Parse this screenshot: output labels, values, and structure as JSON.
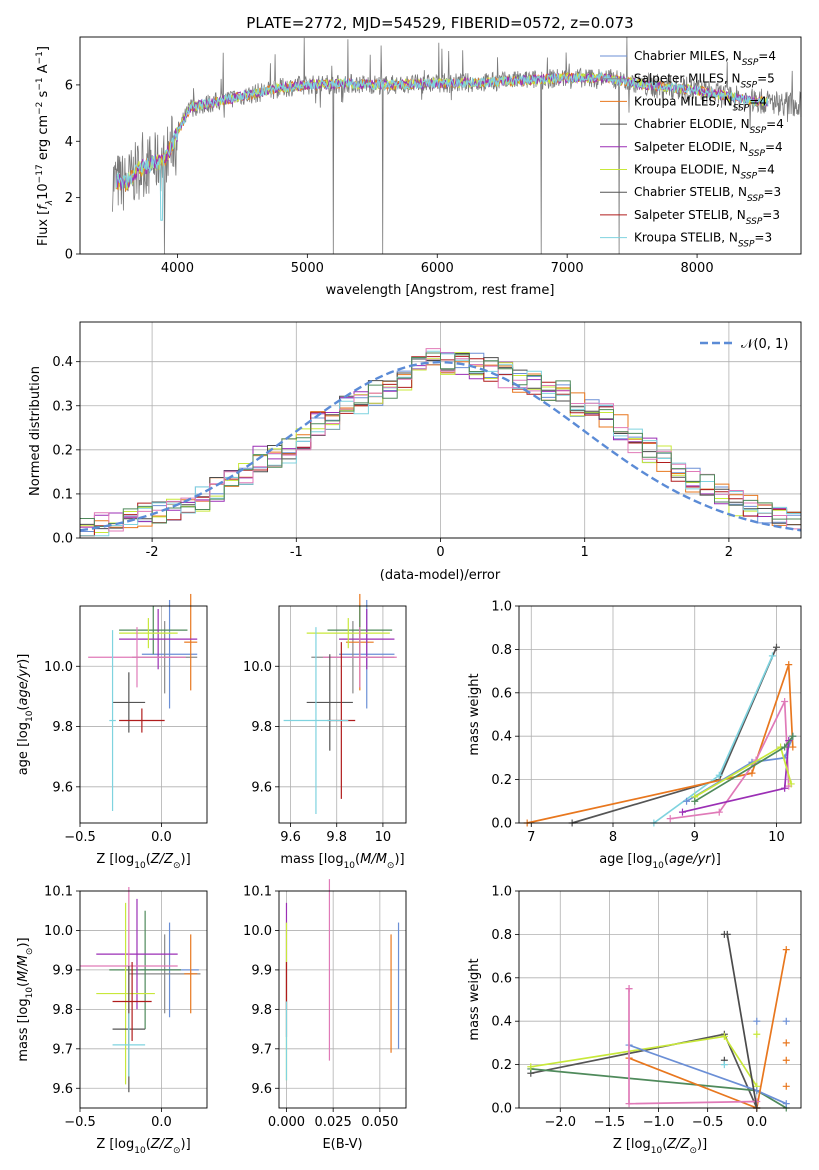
{
  "figure": {
    "title": "PLATE=2772, MJD=54529, FIBERID=0572, z=0.073"
  },
  "legend_entries": [
    {
      "name": "Chabrier MILES, N",
      "sub": "SSP",
      "tail": "=4",
      "color": "#6b8fd6"
    },
    {
      "name": "Salpeter MILES, N",
      "sub": "SSP",
      "tail": "=5",
      "color": "#8a8a8a"
    },
    {
      "name": "Kroupa MILES, N",
      "sub": "SSP",
      "tail": "=4",
      "color": "#e8771e"
    },
    {
      "name": "Chabrier ELODIE, N",
      "sub": "SSP",
      "tail": "=4",
      "color": "#4b4b4b"
    },
    {
      "name": "Salpeter ELODIE, N",
      "sub": "SSP",
      "tail": "=4",
      "color": "#9b2fb5"
    },
    {
      "name": "Kroupa ELODIE, N",
      "sub": "SSP",
      "tail": "=4",
      "color": "#c8e83a"
    },
    {
      "name": "Chabrier STELIB, N",
      "sub": "SSP",
      "tail": "=3",
      "color": "#555555"
    },
    {
      "name": "Salpeter STELIB, N",
      "sub": "SSP",
      "tail": "=3",
      "color": "#b01c1c"
    },
    {
      "name": "Kroupa STELIB, N",
      "sub": "SSP",
      "tail": "=3",
      "color": "#7fd3df"
    }
  ],
  "colors": {
    "spectrum_data": "#7a7a7a",
    "model": "#7fd3df",
    "gaussian": "#5b8bd6",
    "grid": "#b0b0b0",
    "chab_miles": "#6b8fd6",
    "salp_miles": "#8a8a8a",
    "krou_miles": "#e8771e",
    "chab_elodie": "#4b4b4b",
    "salp_elodie": "#9b2fb5",
    "krou_elodie": "#c8e83a",
    "chab_stelib": "#555555",
    "salp_stelib": "#b01c1c",
    "krou_stelib": "#7fd3df",
    "pink": "#e07ab8",
    "green": "#4f8a5b"
  },
  "chart_data": [
    {
      "id": "spectrum",
      "type": "line",
      "title": "PLATE=2772, MJD=54529, FIBERID=0572, z=0.073",
      "xlabel": "wavelength [Angstrom, rest frame]",
      "ylabel": "Flux [f_λ 10^-17 erg cm^-2 s^-1 A^-1]",
      "xlim": [
        3250,
        8800
      ],
      "ylim": [
        0,
        7.7
      ],
      "xticks": [
        4000,
        5000,
        6000,
        7000,
        8000
      ],
      "yticks": [
        0,
        2,
        4,
        6
      ],
      "continuum": [
        [
          3500,
          2.6
        ],
        [
          3600,
          2.5
        ],
        [
          3700,
          3.0
        ],
        [
          3800,
          3.2
        ],
        [
          3900,
          3.3
        ],
        [
          4000,
          4.3
        ],
        [
          4100,
          5.2
        ],
        [
          4300,
          5.4
        ],
        [
          4500,
          5.6
        ],
        [
          4800,
          5.9
        ],
        [
          5000,
          6.0
        ],
        [
          5300,
          6.05
        ],
        [
          5600,
          6.0
        ],
        [
          6000,
          6.05
        ],
        [
          6400,
          6.1
        ],
        [
          6800,
          6.2
        ],
        [
          7000,
          6.25
        ],
        [
          7300,
          6.25
        ],
        [
          7600,
          6.0
        ],
        [
          8000,
          5.8
        ],
        [
          8400,
          5.45
        ],
        [
          8800,
          5.3
        ]
      ],
      "model_end": 8550,
      "spikes_down": [
        3900,
        5200,
        5580,
        6800,
        7400
      ],
      "grid": false
    },
    {
      "id": "residuals",
      "type": "histogram",
      "xlabel": "(data-model)/error",
      "ylabel": "Normed distribution",
      "xlim": [
        -2.5,
        2.5
      ],
      "ylim": [
        0,
        0.49
      ],
      "xticks": [
        -2,
        -1,
        0,
        1,
        2
      ],
      "yticks": [
        0.0,
        0.1,
        0.2,
        0.3,
        0.4
      ],
      "legend": "N(0,1)",
      "bin_width": 0.1,
      "base_histogram": [
        0.02,
        0.03,
        0.03,
        0.04,
        0.05,
        0.06,
        0.06,
        0.07,
        0.09,
        0.11,
        0.13,
        0.15,
        0.18,
        0.19,
        0.2,
        0.23,
        0.26,
        0.27,
        0.3,
        0.31,
        0.33,
        0.34,
        0.36,
        0.39,
        0.41,
        0.4,
        0.4,
        0.39,
        0.38,
        0.37,
        0.36,
        0.35,
        0.34,
        0.33,
        0.3,
        0.3,
        0.28,
        0.25,
        0.22,
        0.2,
        0.18,
        0.15,
        0.13,
        0.12,
        0.1,
        0.08,
        0.07,
        0.06,
        0.05,
        0.04
      ],
      "grid": true
    },
    {
      "id": "age_vs_Z",
      "type": "errorbar",
      "xlabel": "Z [log10(Z/Zsun)]",
      "ylabel": "age [log10(age/yr)]",
      "xlim": [
        -0.5,
        0.28
      ],
      "ylim": [
        9.48,
        10.2
      ],
      "xticks": [
        -0.5,
        0.0
      ],
      "xtick_labels": [
        "−0.5",
        "0.0"
      ],
      "yticks": [
        9.6,
        9.8,
        10.0
      ],
      "points": [
        {
          "x": 0.05,
          "y": 10.04,
          "xerr": 0.17,
          "yerr": 0.18,
          "color": "chab_miles"
        },
        {
          "x": 0.02,
          "y": 10.03,
          "xerr": 0.2,
          "yerr": 0.12,
          "color": "salp_miles"
        },
        {
          "x": 0.18,
          "y": 10.08,
          "xerr": 0.04,
          "yerr": 0.16,
          "color": "krou_miles"
        },
        {
          "x": -0.05,
          "y": 10.12,
          "xerr": 0.21,
          "yerr": 0.08,
          "color": "green"
        },
        {
          "x": -0.02,
          "y": 10.09,
          "xerr": 0.24,
          "yerr": 0.1,
          "color": "salp_elodie"
        },
        {
          "x": -0.08,
          "y": 10.11,
          "xerr": 0.18,
          "yerr": 0.05,
          "color": "krou_elodie"
        },
        {
          "x": -0.15,
          "y": 10.03,
          "xerr": 0.3,
          "yerr": 0.1,
          "color": "pink"
        },
        {
          "x": -0.2,
          "y": 9.88,
          "xerr": 0.1,
          "yerr": 0.1,
          "color": "chab_stelib"
        },
        {
          "x": -0.12,
          "y": 9.82,
          "xerr": 0.14,
          "yerr": 0.04,
          "color": "salp_stelib"
        },
        {
          "x": -0.3,
          "y": 9.82,
          "xerr": 0.02,
          "yerr": 0.3,
          "color": "krou_stelib"
        }
      ],
      "grid": true
    },
    {
      "id": "age_vs_mass",
      "type": "errorbar",
      "xlabel": "mass [log10(M/Msun)]",
      "xlim": [
        9.55,
        10.1
      ],
      "ylim": [
        9.48,
        10.2
      ],
      "xticks": [
        9.6,
        9.8,
        10.0
      ],
      "yticks": [
        9.6,
        9.8,
        10.0
      ],
      "points": [
        {
          "x": 9.93,
          "y": 10.04,
          "xerr": 0.12,
          "yerr": 0.18,
          "color": "chab_miles"
        },
        {
          "x": 9.87,
          "y": 10.03,
          "xerr": 0.18,
          "yerr": 0.12,
          "color": "salp_miles"
        },
        {
          "x": 9.9,
          "y": 10.08,
          "xerr": 0.06,
          "yerr": 0.16,
          "color": "krou_miles"
        },
        {
          "x": 9.9,
          "y": 10.12,
          "xerr": 0.14,
          "yerr": 0.08,
          "color": "green"
        },
        {
          "x": 9.93,
          "y": 10.09,
          "xerr": 0.12,
          "yerr": 0.1,
          "color": "salp_elodie"
        },
        {
          "x": 9.85,
          "y": 10.11,
          "xerr": 0.18,
          "yerr": 0.05,
          "color": "krou_elodie"
        },
        {
          "x": 9.9,
          "y": 10.03,
          "xerr": 0.16,
          "yerr": 0.1,
          "color": "pink"
        },
        {
          "x": 9.77,
          "y": 9.88,
          "xerr": 0.1,
          "yerr": 0.16,
          "color": "chab_stelib"
        },
        {
          "x": 9.82,
          "y": 9.82,
          "xerr": 0.06,
          "yerr": 0.26,
          "color": "salp_stelib"
        },
        {
          "x": 9.71,
          "y": 9.82,
          "xerr": 0.14,
          "yerr": 0.31,
          "color": "krou_stelib"
        }
      ],
      "grid": true
    },
    {
      "id": "weight_vs_age",
      "type": "line",
      "xlabel": "age [log10(age/yr)]",
      "ylabel": "mass weight",
      "xlim": [
        6.85,
        10.3
      ],
      "ylim": [
        0,
        1
      ],
      "xticks": [
        7,
        8,
        9,
        10
      ],
      "yticks": [
        0.0,
        0.2,
        0.4,
        0.6,
        0.8,
        1.0
      ],
      "series": [
        {
          "color": "chab_stelib",
          "points": [
            [
              7.5,
              0.0
            ],
            [
              9.3,
              0.2
            ],
            [
              10.0,
              0.81
            ]
          ]
        },
        {
          "color": "krou_stelib",
          "points": [
            [
              8.5,
              0.0
            ],
            [
              9.3,
              0.22
            ],
            [
              9.95,
              0.77
            ]
          ]
        },
        {
          "color": "krou_miles",
          "points": [
            [
              6.95,
              0.0
            ],
            [
              9.7,
              0.23
            ],
            [
              10.15,
              0.73
            ],
            [
              10.2,
              0.35
            ]
          ]
        },
        {
          "color": "pink",
          "points": [
            [
              8.7,
              0.02
            ],
            [
              9.3,
              0.05
            ],
            [
              9.75,
              0.29
            ],
            [
              10.1,
              0.56
            ],
            [
              10.15,
              0.17
            ]
          ]
        },
        {
          "color": "chab_miles",
          "points": [
            [
              8.9,
              0.1
            ],
            [
              9.7,
              0.28
            ],
            [
              10.1,
              0.3
            ],
            [
              10.2,
              0.4
            ]
          ]
        },
        {
          "color": "salp_elodie",
          "points": [
            [
              8.85,
              0.05
            ],
            [
              10.1,
              0.16
            ],
            [
              10.15,
              0.38
            ]
          ]
        },
        {
          "color": "krou_elodie",
          "points": [
            [
              9.0,
              0.12
            ],
            [
              10.05,
              0.35
            ],
            [
              10.18,
              0.18
            ]
          ]
        },
        {
          "color": "green",
          "points": [
            [
              9.0,
              0.1
            ],
            [
              10.1,
              0.35
            ],
            [
              10.2,
              0.4
            ]
          ]
        }
      ],
      "grid": true
    },
    {
      "id": "mass_vs_Z",
      "type": "errorbar",
      "xlabel": "Z [log10(Z/Zsun)]",
      "ylabel": "mass [log10(M/Msun)]",
      "xlim": [
        -0.5,
        0.28
      ],
      "ylim": [
        9.55,
        10.1
      ],
      "xticks": [
        -0.5,
        0.0
      ],
      "xtick_labels": [
        "−0.5",
        "0.0"
      ],
      "yticks": [
        9.6,
        9.7,
        9.8,
        9.9,
        10.0,
        10.1
      ],
      "points": [
        {
          "x": 0.05,
          "y": 9.9,
          "xerr": 0.18,
          "yerr": 0.12,
          "color": "chab_miles"
        },
        {
          "x": 0.02,
          "y": 9.89,
          "xerr": 0.22,
          "yerr": 0.1,
          "color": "salp_miles"
        },
        {
          "x": 0.18,
          "y": 9.89,
          "xerr": 0.04,
          "yerr": 0.1,
          "color": "krou_miles"
        },
        {
          "x": -0.1,
          "y": 9.9,
          "xerr": 0.22,
          "yerr": 0.15,
          "color": "green"
        },
        {
          "x": -0.15,
          "y": 9.94,
          "xerr": 0.25,
          "yerr": 0.14,
          "color": "salp_elodie"
        },
        {
          "x": -0.22,
          "y": 9.84,
          "xerr": 0.18,
          "yerr": 0.23,
          "color": "krou_elodie"
        },
        {
          "x": -0.2,
          "y": 9.91,
          "xerr": 0.3,
          "yerr": 0.2,
          "color": "pink"
        },
        {
          "x": -0.2,
          "y": 9.75,
          "xerr": 0.1,
          "yerr": 0.16,
          "color": "chab_stelib"
        },
        {
          "x": -0.18,
          "y": 9.82,
          "xerr": 0.12,
          "yerr": 0.1,
          "color": "salp_stelib"
        },
        {
          "x": -0.2,
          "y": 9.71,
          "xerr": 0.1,
          "yerr": 0.08,
          "color": "krou_stelib"
        }
      ],
      "grid": true
    },
    {
      "id": "mass_vs_ebv",
      "type": "errorbar",
      "xlabel": "E(B-V)",
      "xlim": [
        -0.004,
        0.064
      ],
      "ylim": [
        9.55,
        10.1
      ],
      "xticks": [
        0.0,
        0.025,
        0.05
      ],
      "xtick_labels": [
        "0.000",
        "0.025",
        "0.050"
      ],
      "yticks": [
        9.6,
        9.7,
        9.8,
        9.9,
        10.0,
        10.1
      ],
      "points": [
        {
          "x": 0.0,
          "y": 9.9,
          "yerr": 0.17,
          "color": "salp_elodie"
        },
        {
          "x": 0.0,
          "y": 9.82,
          "yerr": 0.2,
          "color": "krou_elodie"
        },
        {
          "x": 0.0,
          "y": 9.86,
          "yerr": 0.06,
          "color": "salp_stelib"
        },
        {
          "x": 0.0,
          "y": 9.72,
          "yerr": 0.1,
          "color": "krou_stelib"
        },
        {
          "x": 0.023,
          "y": 9.9,
          "yerr": 0.23,
          "color": "pink"
        },
        {
          "x": 0.056,
          "y": 9.84,
          "yerr": 0.15,
          "color": "krou_miles"
        },
        {
          "x": 0.06,
          "y": 9.86,
          "yerr": 0.16,
          "color": "chab_miles"
        }
      ],
      "grid": true
    },
    {
      "id": "weight_vs_Z",
      "type": "line",
      "xlabel": "Z [log10(Z/Zsun)]",
      "ylabel": "mass weight",
      "xlim": [
        -2.42,
        0.45
      ],
      "ylim": [
        0,
        1
      ],
      "xticks": [
        -2.0,
        -1.5,
        -1.0,
        -0.5,
        0.0
      ],
      "xtick_labels": [
        "−2.0",
        "−1.5",
        "−1.0",
        "−0.5",
        "0.0"
      ],
      "yticks": [
        0.0,
        0.2,
        0.4,
        0.6,
        0.8,
        1.0
      ],
      "series": [
        {
          "color": "chab_stelib",
          "points": [
            [
              -2.3,
              0.16
            ],
            [
              -0.33,
              0.34
            ],
            [
              0.0,
              0.0
            ]
          ]
        },
        {
          "color": "green",
          "points": [
            [
              -2.3,
              0.18
            ],
            [
              0.0,
              0.08
            ],
            [
              0.3,
              0.0
            ]
          ]
        },
        {
          "color": "krou_elodie",
          "points": [
            [
              -2.3,
              0.19
            ],
            [
              -0.33,
              0.33
            ],
            [
              0.0,
              0.1
            ]
          ]
        },
        {
          "color": "chab_miles",
          "points": [
            [
              -1.3,
              0.29
            ],
            [
              0.0,
              0.08
            ],
            [
              0.3,
              0.02
            ]
          ]
        },
        {
          "color": "krou_miles",
          "points": [
            [
              -1.3,
              0.23
            ],
            [
              0.0,
              0.0
            ],
            [
              0.3,
              0.73
            ]
          ]
        },
        {
          "color": "pink",
          "points": [
            [
              -1.3,
              0.55
            ],
            [
              -1.3,
              0.02
            ],
            [
              0.0,
              0.03
            ]
          ]
        },
        {
          "color": "chab_elodie",
          "points": [
            [
              -0.3,
              0.8
            ],
            [
              0.0,
              0.0
            ]
          ]
        }
      ],
      "markers": [
        {
          "x": -0.33,
          "y": 0.8,
          "color": "chab_elodie"
        },
        {
          "x": -0.33,
          "y": 0.22,
          "color": "chab_elodie"
        },
        {
          "x": -0.33,
          "y": 0.2,
          "color": "krou_stelib"
        },
        {
          "x": 0.0,
          "y": 0.4,
          "color": "chab_miles"
        },
        {
          "x": 0.0,
          "y": 0.34,
          "color": "krou_elodie"
        },
        {
          "x": 0.3,
          "y": 0.4,
          "color": "chab_miles"
        },
        {
          "x": 0.3,
          "y": 0.3,
          "color": "krou_miles"
        },
        {
          "x": 0.3,
          "y": 0.22,
          "color": "krou_miles"
        },
        {
          "x": 0.3,
          "y": 0.1,
          "color": "krou_miles"
        },
        {
          "x": -1.3,
          "y": 0.55,
          "color": "pink"
        }
      ],
      "grid": true
    }
  ]
}
